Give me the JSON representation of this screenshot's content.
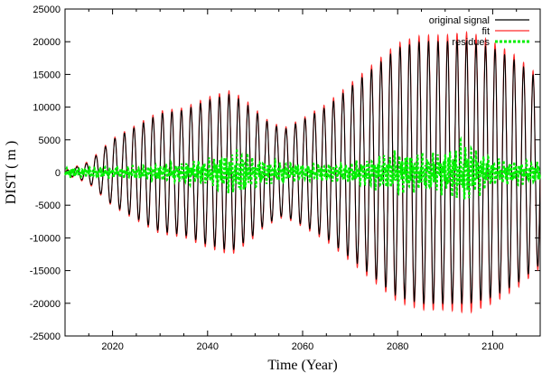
{
  "chart_data": {
    "type": "line",
    "title": "",
    "xlabel": "Time (Year)",
    "ylabel": "DIST ( m )",
    "xlim": [
      2010,
      2110
    ],
    "ylim": [
      -25000,
      25000
    ],
    "x_ticks": [
      2020,
      2040,
      2060,
      2080,
      2100
    ],
    "y_ticks": [
      -25000,
      -20000,
      -15000,
      -10000,
      -5000,
      0,
      5000,
      10000,
      15000,
      20000,
      25000
    ],
    "grid": false,
    "legend_position": "top-right",
    "oscillation_period_years": 2.0,
    "series": [
      {
        "name": "original signal",
        "color": "#000000",
        "style": "solid",
        "envelope": {
          "x": [
            2010,
            2015,
            2020,
            2025,
            2030,
            2035,
            2040,
            2045,
            2049,
            2052,
            2056,
            2060,
            2065,
            2070,
            2075,
            2080,
            2085,
            2090,
            2095,
            2100,
            2105,
            2110
          ],
          "amplitude": [
            200,
            1500,
            5000,
            7000,
            9000,
            9500,
            11000,
            12000,
            10000,
            8000,
            6500,
            8000,
            10000,
            13000,
            16000,
            19000,
            20000,
            20000,
            20000,
            19000,
            17000,
            14000
          ]
        }
      },
      {
        "name": "fit",
        "color": "#ff2a2a",
        "style": "solid",
        "envelope": {
          "x": [
            2010,
            2015,
            2020,
            2025,
            2030,
            2035,
            2040,
            2045,
            2049,
            2052,
            2056,
            2060,
            2065,
            2070,
            2075,
            2080,
            2085,
            2090,
            2095,
            2100,
            2105,
            2110
          ],
          "amplitude": [
            300,
            1700,
            5200,
            7300,
            9400,
            9900,
            11500,
            12600,
            10500,
            8300,
            6800,
            8300,
            10500,
            13600,
            16700,
            19800,
            21000,
            21000,
            21500,
            20000,
            17800,
            14600
          ]
        }
      },
      {
        "name": "residues",
        "color": "#00ee00",
        "style": "dashed",
        "envelope": {
          "x": [
            2010,
            2020,
            2030,
            2040,
            2047,
            2050,
            2060,
            2070,
            2080,
            2085,
            2090,
            2094,
            2100,
            2110
          ],
          "amplitude": [
            800,
            1000,
            1500,
            2500,
            4500,
            2500,
            1500,
            1800,
            4000,
            3500,
            4000,
            6000,
            2500,
            2000
          ]
        }
      }
    ]
  }
}
